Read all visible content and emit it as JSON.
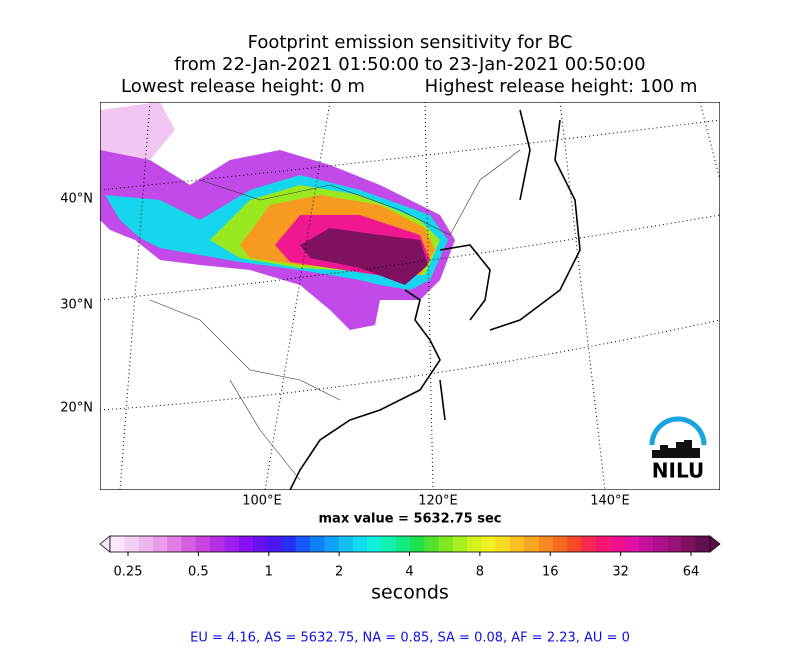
{
  "title": {
    "line1": "Footprint emission sensitivity for BC",
    "line2": "from 22-Jan-2021 01:50:00 to 23-Jan-2021 00:50:00",
    "line3_left": "Lowest release height: 0 m",
    "line3_right": "Highest release height: 100 m"
  },
  "map": {
    "lat_labels": [
      "40°N",
      "30°N",
      "20°N"
    ],
    "lon_labels": [
      "100°E",
      "120°E",
      "140°E"
    ],
    "logo": "NILU",
    "max_value": "max value = 5632.75 sec"
  },
  "colorbar": {
    "ticks": [
      0.25,
      0.5,
      1,
      2,
      4,
      8,
      16,
      32,
      64
    ],
    "label": "seconds",
    "colors": [
      "#fbe9fb",
      "#f5d0f5",
      "#efb6ef",
      "#e89ce9",
      "#e07ee3",
      "#d65fe0",
      "#c844e0",
      "#b62ee6",
      "#a01ef0",
      "#8a10f4",
      "#6a10f8",
      "#4a18fa",
      "#2a30fc",
      "#1858fc",
      "#1080fa",
      "#10a0f6",
      "#10c0f2",
      "#10dcee",
      "#10eedc",
      "#10f0b0",
      "#10ec80",
      "#20e050",
      "#50e030",
      "#80e820",
      "#a8f020",
      "#d0f420",
      "#f0f020",
      "#f8dc20",
      "#f8c020",
      "#f8a420",
      "#f88820",
      "#f86c20",
      "#f84828",
      "#f82850",
      "#f81870",
      "#f01090",
      "#e010a0",
      "#c810a0",
      "#b0108c",
      "#981078",
      "#801060",
      "#601050"
    ]
  },
  "footer": "EU = 4.16,  AS = 5632.75,  NA = 0.85,  SA = 0.08,  AF = 2.23,  AU = 0"
}
